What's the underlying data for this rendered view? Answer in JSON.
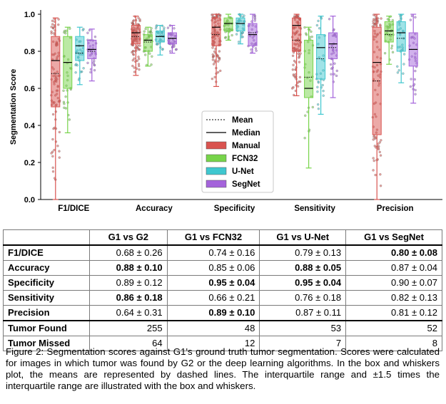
{
  "chart_data": {
    "type": "box",
    "ylabel": "Segmentation Score",
    "ylim": [
      0,
      1
    ],
    "yticks": [
      "0.0",
      "0.2",
      "0.4",
      "0.6",
      "0.8",
      "1.0"
    ],
    "categories": [
      "F1/DICE",
      "Accuracy",
      "Specificity",
      "Sensitivity",
      "Precision"
    ],
    "series": [
      {
        "name": "Manual",
        "color": "#d9534f",
        "boxes": [
          {
            "q1": 0.5,
            "median": 0.75,
            "q3": 0.88,
            "mean": 0.68,
            "whisker_low": 0.0,
            "whisker_high": 0.98
          },
          {
            "q1": 0.84,
            "median": 0.9,
            "q3": 0.94,
            "mean": 0.88,
            "whisker_low": 0.67,
            "whisker_high": 0.99
          },
          {
            "q1": 0.83,
            "median": 0.93,
            "q3": 0.98,
            "mean": 0.89,
            "whisker_low": 0.61,
            "whisker_high": 1.0
          },
          {
            "q1": 0.8,
            "median": 0.94,
            "q3": 0.98,
            "mean": 0.86,
            "whisker_low": 0.56,
            "whisker_high": 1.0
          },
          {
            "q1": 0.35,
            "median": 0.74,
            "q3": 0.93,
            "mean": 0.64,
            "whisker_low": 0.0,
            "whisker_high": 1.0
          }
        ]
      },
      {
        "name": "FCN32",
        "color": "#77d44a",
        "boxes": [
          {
            "q1": 0.6,
            "median": 0.74,
            "q3": 0.88,
            "mean": 0.74,
            "whisker_low": 0.36,
            "whisker_high": 0.93
          },
          {
            "q1": 0.8,
            "median": 0.86,
            "q3": 0.89,
            "mean": 0.85,
            "whisker_low": 0.72,
            "whisker_high": 0.93
          },
          {
            "q1": 0.91,
            "median": 0.95,
            "q3": 0.98,
            "mean": 0.95,
            "whisker_low": 0.86,
            "whisker_high": 1.0
          },
          {
            "q1": 0.55,
            "median": 0.6,
            "q3": 0.86,
            "mean": 0.66,
            "whisker_low": 0.17,
            "whisker_high": 0.93
          },
          {
            "q1": 0.85,
            "median": 0.91,
            "q3": 0.96,
            "mean": 0.89,
            "whisker_low": 0.73,
            "whisker_high": 0.99
          }
        ]
      },
      {
        "name": "U-Net",
        "color": "#3fc7cf",
        "boxes": [
          {
            "q1": 0.75,
            "median": 0.83,
            "q3": 0.88,
            "mean": 0.79,
            "whisker_low": 0.62,
            "whisker_high": 0.93
          },
          {
            "q1": 0.85,
            "median": 0.88,
            "q3": 0.91,
            "mean": 0.88,
            "whisker_low": 0.78,
            "whisker_high": 0.94
          },
          {
            "q1": 0.91,
            "median": 0.95,
            "q3": 0.98,
            "mean": 0.95,
            "whisker_low": 0.84,
            "whisker_high": 1.0
          },
          {
            "q1": 0.65,
            "median": 0.82,
            "q3": 0.89,
            "mean": 0.76,
            "whisker_low": 0.46,
            "whisker_high": 0.99
          },
          {
            "q1": 0.8,
            "median": 0.9,
            "q3": 0.96,
            "mean": 0.87,
            "whisker_low": 0.63,
            "whisker_high": 1.0
          }
        ]
      },
      {
        "name": "SegNet",
        "color": "#a463db",
        "boxes": [
          {
            "q1": 0.76,
            "median": 0.81,
            "q3": 0.86,
            "mean": 0.8,
            "whisker_low": 0.64,
            "whisker_high": 0.92
          },
          {
            "q1": 0.84,
            "median": 0.87,
            "q3": 0.9,
            "mean": 0.87,
            "whisker_low": 0.79,
            "whisker_high": 0.94
          },
          {
            "q1": 0.83,
            "median": 0.89,
            "q3": 0.95,
            "mean": 0.9,
            "whisker_low": 0.79,
            "whisker_high": 1.0
          },
          {
            "q1": 0.76,
            "median": 0.84,
            "q3": 0.9,
            "mean": 0.82,
            "whisker_low": 0.55,
            "whisker_high": 0.99
          },
          {
            "q1": 0.72,
            "median": 0.81,
            "q3": 0.9,
            "mean": 0.81,
            "whisker_low": 0.52,
            "whisker_high": 1.0
          }
        ]
      }
    ],
    "legend": {
      "placement": "center",
      "entries": [
        "Mean",
        "Median",
        "Manual",
        "FCN32",
        "U-Net",
        "SegNet"
      ]
    },
    "grid": false
  },
  "table": {
    "columns": [
      "",
      "G1 vs G2",
      "G1 vs FCN32",
      "G1 vs U-Net",
      "G1 vs SegNet"
    ],
    "rows": [
      {
        "label": "F1/DICE",
        "cells": [
          "0.68 ± 0.26",
          "0.74 ± 0.16",
          "0.79 ± 0.13",
          "0.80 ± 0.08"
        ],
        "bold": [
          false,
          false,
          false,
          true
        ]
      },
      {
        "label": "Accuracy",
        "cells": [
          "0.88 ± 0.10",
          "0.85 ± 0.06",
          "0.88 ± 0.05",
          "0.87 ± 0.04"
        ],
        "bold": [
          true,
          false,
          true,
          false
        ]
      },
      {
        "label": "Specificity",
        "cells": [
          "0.89 ± 0.12",
          "0.95 ± 0.04",
          "0.95 ± 0.04",
          "0.90 ± 0.07"
        ],
        "bold": [
          false,
          true,
          true,
          false
        ]
      },
      {
        "label": "Sensitivity",
        "cells": [
          "0.86 ± 0.18",
          "0.66 ± 0.21",
          "0.76 ± 0.18",
          "0.82 ± 0.13"
        ],
        "bold": [
          true,
          false,
          false,
          false
        ]
      },
      {
        "label": "Precision",
        "cells": [
          "0.64 ± 0.31",
          "0.89 ± 0.10",
          "0.87 ± 0.11",
          "0.81 ± 0.12"
        ],
        "bold": [
          false,
          true,
          false,
          false
        ]
      },
      {
        "label": "Tumor Found",
        "cells": [
          "255",
          "48",
          "53",
          "52"
        ],
        "bold": [
          false,
          false,
          false,
          false
        ]
      },
      {
        "label": "Tumor Missed",
        "cells": [
          "64",
          "12",
          "7",
          "8"
        ],
        "bold": [
          false,
          false,
          false,
          false
        ]
      }
    ]
  },
  "caption": "Figure 2: Segmentation scores against G1's ground truth tumor segmentation. Scores were calculated for images in which tumor was found by G2 or the deep learning algorithms. In the box and whiskers plot, the means are represented by dashed lines. The interquartile range and ±1.5 times the interquartile range are illustrated with the box and whiskers."
}
